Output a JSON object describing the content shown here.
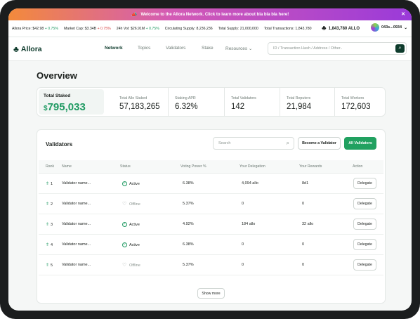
{
  "banner": {
    "text": "Welcome to the Allora Network. Click to learn more about bla bla bla here!"
  },
  "ticker": {
    "items": [
      {
        "label": "Allora Price:",
        "value": "$42.98",
        "change": "+ 0.75%",
        "dir": "up"
      },
      {
        "label": "Market Cap:",
        "value": "$3.34B",
        "change": "+ 0.75%",
        "dir": "down"
      },
      {
        "label": "24h Vol:",
        "value": "$26.91M",
        "change": "+ 0.75%",
        "dir": "up"
      },
      {
        "label": "Circulating Supply:",
        "value": "8,236,236",
        "change": "",
        "dir": ""
      },
      {
        "label": "Total Supply:",
        "value": "21,000,000",
        "change": "",
        "dir": ""
      },
      {
        "label": "Total Transactions:",
        "value": "1,843,780",
        "change": "",
        "dir": ""
      }
    ],
    "token_balance": "1,843,780 ALLO",
    "wallet_address": "043s...0934"
  },
  "nav": {
    "logo": "Allora",
    "links": [
      "Network",
      "Topics",
      "Validators",
      "Stake",
      "Resources"
    ],
    "active": "Network",
    "search_placeholder": "ID / Transaction Hash / Address / Other.."
  },
  "overview": {
    "title": "Overview",
    "total_staked_label": "Total Staked",
    "total_staked_currency": "$",
    "total_staked_value": "795,033",
    "stats": [
      {
        "label": "Total Allo Staked",
        "value": "57,183,265"
      },
      {
        "label": "Staking APR",
        "value": "6.32%"
      },
      {
        "label": "Total Validators",
        "value": "142"
      },
      {
        "label": "Total Reputers",
        "value": "21,984"
      },
      {
        "label": "Total Workers",
        "value": "172,603"
      }
    ]
  },
  "validators": {
    "title": "Validators",
    "search_placeholder": "Search",
    "become_validator_label": "Become a Validator",
    "all_validators_label": "All Validators",
    "columns": [
      "Rank",
      "Name",
      "Status",
      "Voting Power %",
      "Your Delegation",
      "Your Rewards",
      "Action"
    ],
    "rows": [
      {
        "rank": "1",
        "name": "Validator name...",
        "status": "Active",
        "voting_power": "6.38%",
        "delegation": "4,094 allo",
        "rewards": "8d1",
        "action": "Delegate"
      },
      {
        "rank": "2",
        "name": "Validator name...",
        "status": "Offline",
        "voting_power": "5.37%",
        "delegation": "0",
        "rewards": "0",
        "action": "Delegate"
      },
      {
        "rank": "3",
        "name": "Validator name...",
        "status": "Active",
        "voting_power": "4.92%",
        "delegation": "184 allo",
        "rewards": "32 allo",
        "action": "Delegate"
      },
      {
        "rank": "4",
        "name": "Validator name...",
        "status": "Active",
        "voting_power": "6.38%",
        "delegation": "0",
        "rewards": "0",
        "action": "Delegate"
      },
      {
        "rank": "5",
        "name": "Validator name...",
        "status": "Offline",
        "voting_power": "5.37%",
        "delegation": "0",
        "rewards": "0",
        "action": "Delegate"
      }
    ],
    "show_more_label": "Show more"
  },
  "colors": {
    "brand": "#0e3b2c",
    "accent_green": "#21a160",
    "positive": "#1f9a62",
    "negative": "#d84444"
  }
}
